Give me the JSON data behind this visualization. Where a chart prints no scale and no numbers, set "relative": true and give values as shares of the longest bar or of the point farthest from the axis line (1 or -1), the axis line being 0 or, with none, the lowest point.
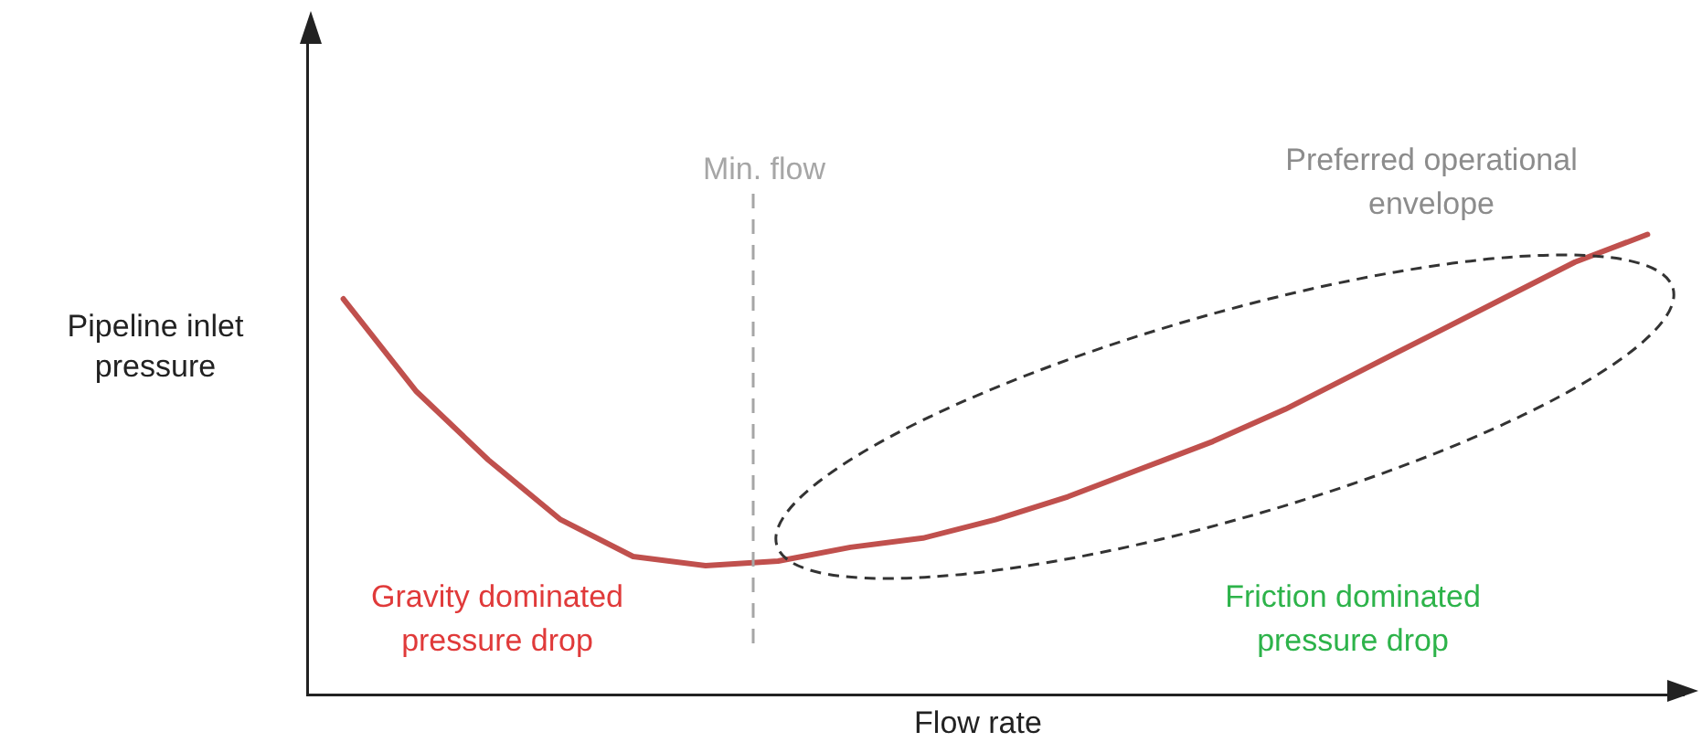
{
  "chart_data": {
    "type": "line",
    "relative": true,
    "xlabel": "Flow rate",
    "ylabel": "Pipeline inlet pressure",
    "categories": [
      null,
      null,
      null,
      null,
      null,
      null,
      null,
      null,
      null,
      null,
      null,
      null,
      null,
      null,
      null,
      null,
      null,
      null,
      null
    ],
    "tick_labels": false,
    "grid": false,
    "legend": false,
    "marker": "none",
    "line_style": "solid",
    "series": [
      {
        "color": "#c0504d",
        "values": [
          0.86,
          0.66,
          0.51,
          0.38,
          0.3,
          0.28,
          0.29,
          0.32,
          0.34,
          0.38,
          0.43,
          0.49,
          0.55,
          0.62,
          0.7,
          0.78,
          0.86,
          0.94,
          1
        ]
      }
    ],
    "annotations": [
      "Gravity dominated pressure drop",
      "Friction dominated pressure drop",
      "Preferred operational envelope",
      "Min. flow"
    ]
  }
}
